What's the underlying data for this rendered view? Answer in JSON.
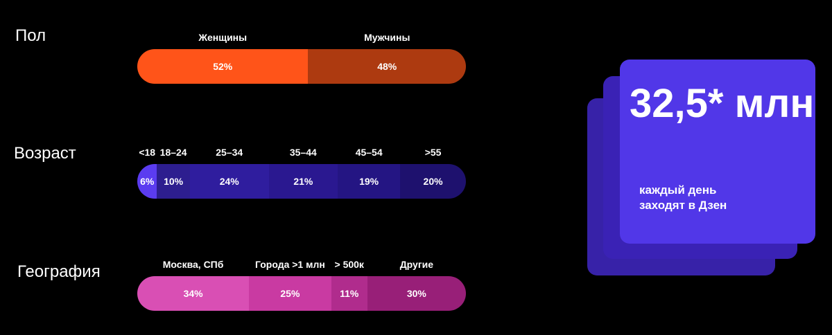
{
  "chart_data": [
    {
      "type": "bar",
      "title": "Пол",
      "categories": [
        "Женщины",
        "Мужчины"
      ],
      "values": [
        52,
        48
      ],
      "value_labels": [
        "52%",
        "48%"
      ],
      "colors": [
        "#ff5419",
        "#ad3a10"
      ]
    },
    {
      "type": "bar",
      "title": "Возраст",
      "categories": [
        "<18",
        "18–24",
        "25–34",
        "35–44",
        "45–54",
        ">55"
      ],
      "values": [
        6,
        10,
        24,
        21,
        19,
        20
      ],
      "value_labels": [
        "6%",
        "10%",
        "24%",
        "21%",
        "19%",
        "20%"
      ],
      "colors": [
        "#5b3cf0",
        "#2d1e8f",
        "#2f1d9e",
        "#2a1890",
        "#241583",
        "#1e116e"
      ]
    },
    {
      "type": "bar",
      "title": "География",
      "categories": [
        "Москва, СПб",
        "Города >1 млн",
        "> 500к",
        "Другие"
      ],
      "values": [
        34,
        25,
        11,
        30
      ],
      "value_labels": [
        "34%",
        "25%",
        "11%",
        "30%"
      ],
      "colors": [
        "#d94fb4",
        "#c93aa2",
        "#b02c8d",
        "#981f78"
      ]
    }
  ],
  "stat_card": {
    "value": "32,5* млн",
    "caption_line1": "каждый день",
    "caption_line2": "заходят в Дзен",
    "colors": [
      "#5137e8",
      "#3a22b5",
      "#3722a8"
    ]
  }
}
